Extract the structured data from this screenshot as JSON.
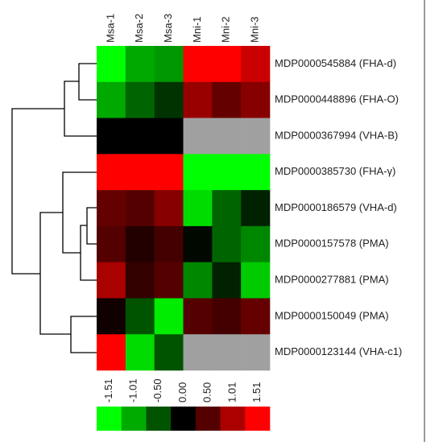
{
  "chart_data": {
    "type": "heatmap",
    "categories": [
      "Msa-1",
      "Msa-2",
      "Msa-3",
      "Mni-1",
      "Mni-2",
      "Mni-3"
    ],
    "rows": [
      "MDP0000545884 (FHA-d)",
      "MDP0000448896 (FHA-O)",
      "MDP0000367994 (VHA-B)",
      "MDP0000385730 (FHA-γ)",
      "MDP0000186579 (VHA-d)",
      "MDP0000157578 (PMA)",
      "MDP0000277881 (PMA)",
      "MDP0000150049 (PMA)",
      "MDP0000123144 (VHA-c1)"
    ],
    "values": [
      [
        -1.51,
        -1.0,
        -0.9,
        1.51,
        1.51,
        1.2
      ],
      [
        -1.0,
        -0.6,
        -0.3,
        0.9,
        0.6,
        0.8
      ],
      [
        0,
        0,
        0,
        null,
        null,
        null
      ],
      [
        1.51,
        1.51,
        1.51,
        -1.51,
        -1.51,
        -1.51
      ],
      [
        0.6,
        0.5,
        0.8,
        -1.3,
        -0.6,
        -0.2
      ],
      [
        0.5,
        0.2,
        0.4,
        -0.05,
        -0.6,
        -0.8
      ],
      [
        1.0,
        0.3,
        0.5,
        -0.8,
        -0.2,
        -1.2
      ],
      [
        0.1,
        -0.5,
        -1.4,
        0.5,
        0.4,
        0.6
      ],
      [
        1.51,
        -1.3,
        -0.5,
        null,
        null,
        null
      ]
    ],
    "clim": [
      -1.51,
      1.51
    ],
    "colorbar_ticks": [
      -1.51,
      -1.01,
      {
        "value": -0.5,
        "label": "-0.50"
      },
      {
        "value": 0,
        "label": "0.00"
      },
      {
        "value": 0.5,
        "label": "0.50"
      },
      1.01,
      1.51
    ],
    "colors": {
      "low": "#00ff00",
      "mid": "#000000",
      "high": "#ff0000",
      "missing": "#a0a0a0"
    }
  }
}
